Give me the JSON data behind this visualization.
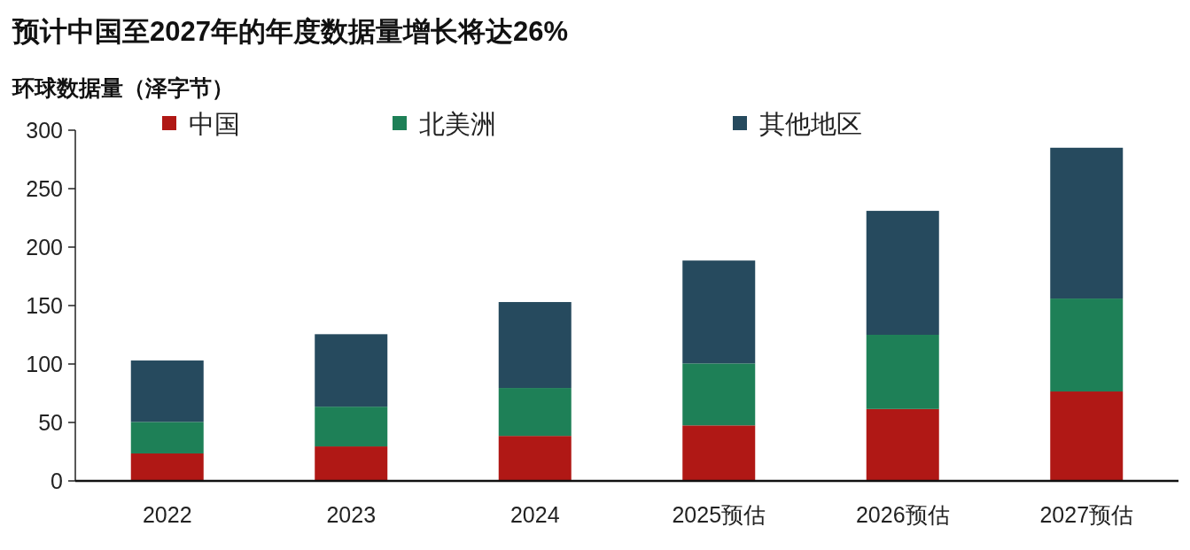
{
  "chart_data": {
    "type": "bar",
    "title": "预计中国至2027年的年度数据量增长将达26%",
    "ylabel": "环球数据量（泽字节）",
    "categories": [
      "2022",
      "2023",
      "2024",
      "2025预估",
      "2026预估",
      "2027预估"
    ],
    "stacked": true,
    "legend": "top",
    "ylim": [
      0,
      300
    ],
    "yticks": [
      0,
      50,
      100,
      150,
      200,
      250,
      300
    ],
    "series": [
      {
        "name": "中国",
        "color": "#b01815",
        "values": [
          23.5,
          29.5,
          38.5,
          47.5,
          61.5,
          76.5
        ]
      },
      {
        "name": "北美洲",
        "color": "#1e8057",
        "values": [
          27,
          34,
          41,
          53,
          63.5,
          79.5
        ]
      },
      {
        "name": "其他地区",
        "color": "#264a5e",
        "values": [
          52.5,
          62,
          73.5,
          88,
          106,
          129
        ]
      }
    ]
  }
}
